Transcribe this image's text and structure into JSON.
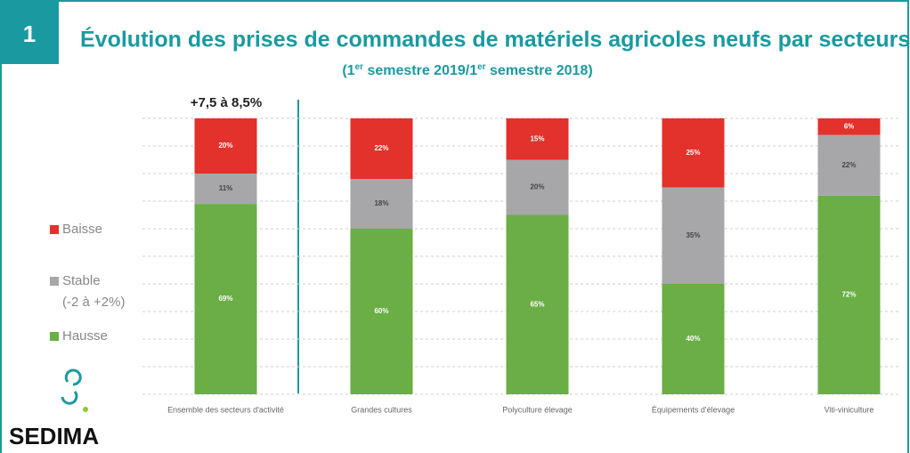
{
  "chart_data": {
    "type": "bar",
    "stacked": true,
    "badge": "1",
    "title": "Évolution des prises de commandes de matériels agricoles neufs par secteurs",
    "subtitle_parts": [
      "(1",
      "er",
      " semestre 2019/1",
      "er",
      " semestre 2018)"
    ],
    "annotation": "+7,5 à 8,5%",
    "categories": [
      "Ensemble des secteurs d'activité",
      "Grandes cultures",
      "Polyculture élevage",
      "Équipements d'élevage",
      "Viti-viniculture"
    ],
    "series": [
      {
        "name": "Hausse",
        "color": "#6aae45",
        "values": [
          69,
          60,
          65,
          40,
          72
        ],
        "value_labels": [
          "69%",
          "60%",
          "65%",
          "40%",
          "72%"
        ]
      },
      {
        "name": "Stable",
        "note": "(-2 à +2%)",
        "color": "#a7a7a9",
        "values": [
          11,
          18,
          20,
          35,
          22
        ],
        "value_labels": [
          "11%",
          "18%",
          "20%",
          "35%",
          "22%"
        ]
      },
      {
        "name": "Baisse",
        "color": "#e3312b",
        "values": [
          20,
          22,
          15,
          25,
          6
        ],
        "value_labels": [
          "20%",
          "22%",
          "15%",
          "25%",
          "6%"
        ]
      }
    ],
    "ylim": [
      0,
      100
    ],
    "yticks": [
      0,
      10,
      20,
      30,
      40,
      50,
      60,
      70,
      80,
      90,
      100
    ],
    "grid": true,
    "logo": "SEDIMA"
  }
}
